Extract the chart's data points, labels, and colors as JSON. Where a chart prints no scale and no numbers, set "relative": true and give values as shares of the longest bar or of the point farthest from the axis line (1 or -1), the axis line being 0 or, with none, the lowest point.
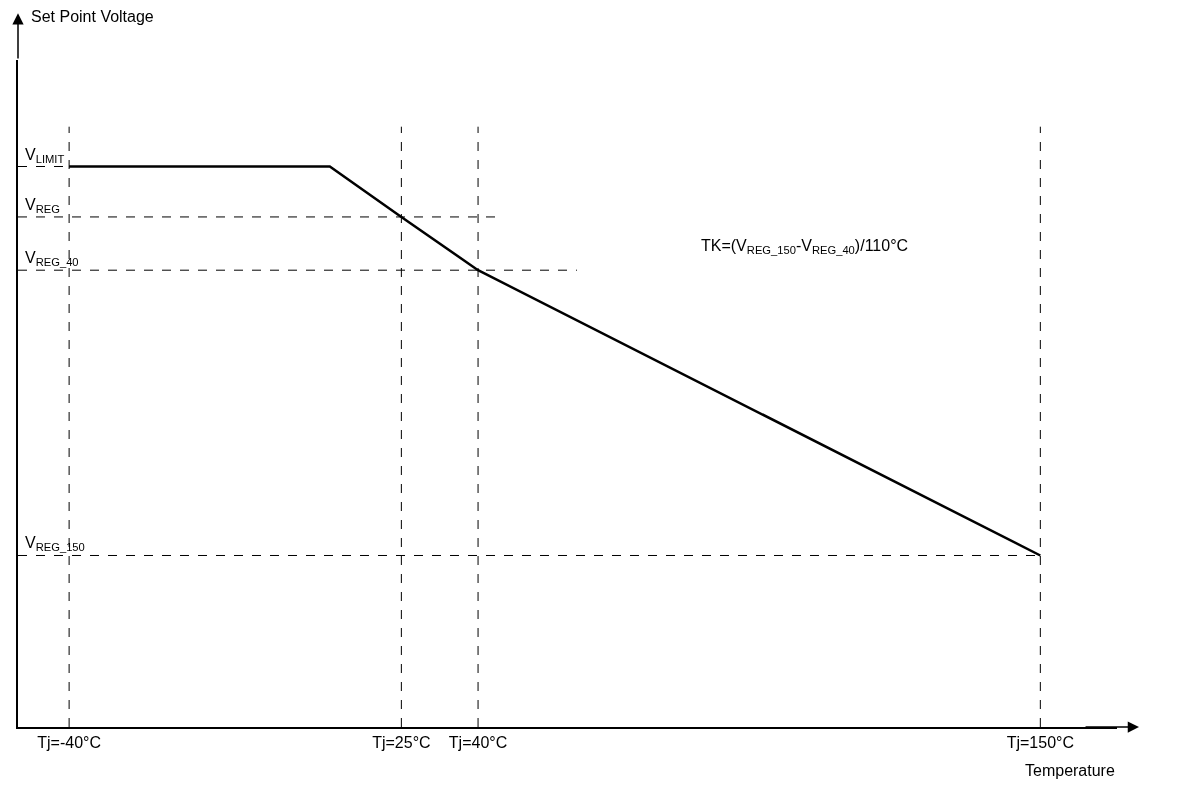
{
  "chart_data": {
    "type": "line",
    "relative": true,
    "xlabel": "Temperature",
    "x": [
      -40,
      11,
      25,
      40,
      150
    ],
    "series": [
      {
        "color": "#000000",
        "values": [
          1,
          1,
          0.91,
          0.815,
          0.306
        ]
      }
    ],
    "xlim": [
      -50,
      165
    ],
    "xticks": [
      {
        "value": -40,
        "label": "Tj=-40°C"
      },
      {
        "value": 25,
        "label": "Tj=25°C"
      },
      {
        "value": 40,
        "label": "Tj=40°C"
      },
      {
        "value": 150,
        "label": "Tj=150°C"
      }
    ],
    "ref_lines": [
      {
        "axis": "y",
        "value": 1,
        "label": "V$_{LIMIT}$",
        "line_style": "dashed"
      },
      {
        "axis": "y",
        "value": 0.91,
        "label": "V$_{REG}$",
        "line_style": "dashed"
      },
      {
        "axis": "y",
        "value": 0.815,
        "label": "V$_{REG_40}$",
        "line_style": "dashed"
      },
      {
        "axis": "y",
        "value": 0.306,
        "label": "V$_{REG_150}$",
        "line_style": "dashed"
      },
      {
        "axis": "x",
        "value": -40,
        "line_style": "dashed"
      },
      {
        "axis": "x",
        "value": 25,
        "line_style": "dashed"
      },
      {
        "axis": "x",
        "value": 40,
        "line_style": "dashed"
      },
      {
        "axis": "x",
        "value": 150,
        "line_style": "dashed"
      }
    ],
    "annotations": [
      "Set Point Voltage",
      "TK=(V$_{REG_150}$-V$_{REG_40}$)/110°C"
    ],
    "grid": false,
    "marker": "none",
    "line_style": "solid"
  }
}
